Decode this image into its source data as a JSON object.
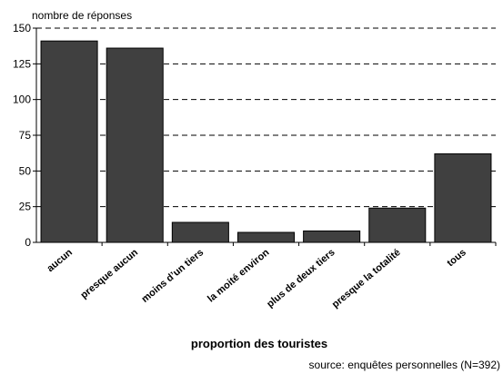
{
  "chart_data": {
    "type": "bar",
    "y_axis_label": "nombre de réponses",
    "x_axis_label": "proportion des touristes",
    "source": "source: enquêtes personnelles (N=392)",
    "categories": [
      "aucun",
      "presque aucun",
      "moins d’un tiers",
      "la moité environ",
      "plus de deux tiers",
      "presque la totalité",
      "tous"
    ],
    "values": [
      141,
      136,
      14,
      7,
      8,
      24,
      62
    ],
    "color": "#404040",
    "ylim": [
      0,
      150
    ],
    "yticks": [
      0,
      25,
      50,
      75,
      100,
      125,
      150
    ],
    "grid": true
  }
}
